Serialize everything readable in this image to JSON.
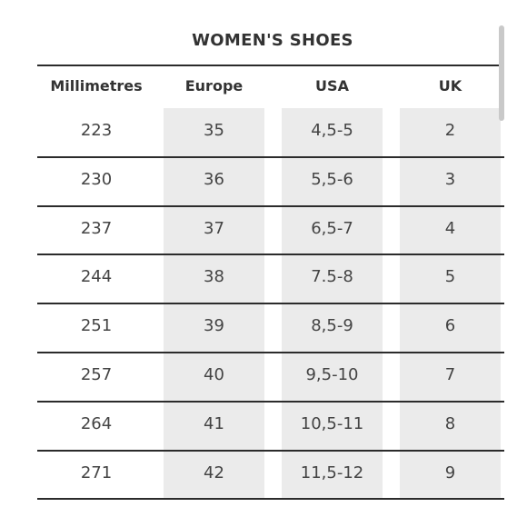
{
  "title": "WOMEN'S SHOES",
  "headers": [
    "Millimetres",
    "Europe",
    "USA",
    "UK"
  ],
  "rows": [
    [
      "223",
      "35",
      "4,5-5",
      "2"
    ],
    [
      "230",
      "36",
      "5,5-6",
      "3"
    ],
    [
      "237",
      "37",
      "6,5-7",
      "4"
    ],
    [
      "244",
      "38",
      "7.5-8",
      "5"
    ],
    [
      "251",
      "39",
      "8,5-9",
      "6"
    ],
    [
      "257",
      "40",
      "9,5-10",
      "7"
    ],
    [
      "264",
      "41",
      "10,5-11",
      "8"
    ],
    [
      "271",
      "42",
      "11,5-12",
      "9"
    ]
  ],
  "colors": {
    "rule": "#2b2b2b",
    "shade": "#ebebeb",
    "text": "#444444",
    "scrollbar": "#c9c9c9"
  }
}
